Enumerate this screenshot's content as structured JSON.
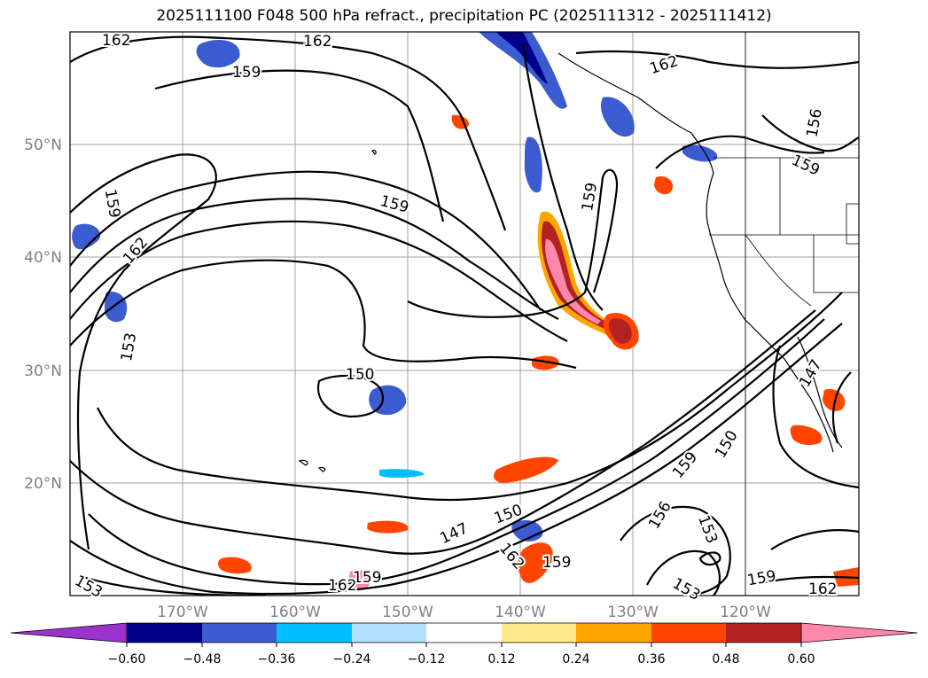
{
  "title": "2025111100 F048 500 hPa refract., precipitation PC (2025111312 - 2025111412)",
  "latitudes": [
    "50°N",
    "40°N",
    "30°N",
    "20°N"
  ],
  "longitudes": [
    "170°W",
    "160°W",
    "150°W",
    "140°W",
    "130°W",
    "120°W"
  ],
  "contour_labels": [
    "162",
    "162",
    "159",
    "162",
    "156",
    "159",
    "159",
    "159",
    "162",
    "153",
    "150",
    "159",
    "150",
    "147",
    "150",
    "159",
    "156",
    "153",
    "162",
    "159",
    "159",
    "162",
    "159",
    "147",
    "162",
    "153",
    "153"
  ],
  "colorbar": {
    "ticks": [
      "−0.60",
      "−0.48",
      "−0.36",
      "−0.24",
      "−0.12",
      "0.12",
      "0.24",
      "0.36",
      "0.48",
      "0.60"
    ],
    "colors": [
      "#9a33cc",
      "#00008b",
      "#3b5bd0",
      "#00bfff",
      "#b0e2ff",
      "#ffffff",
      "#ffe88a",
      "#ffa500",
      "#ff4500",
      "#b22222",
      "#ff88aa"
    ]
  }
}
